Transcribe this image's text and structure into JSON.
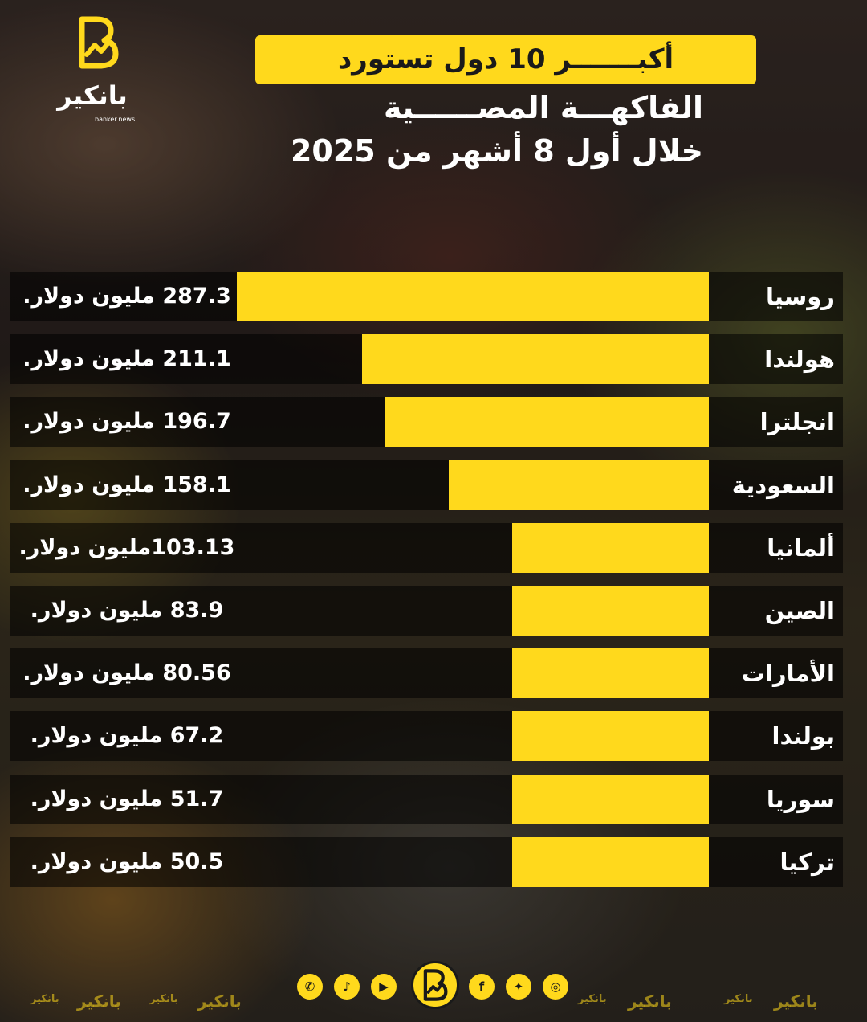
{
  "brand": {
    "name": "بانكير",
    "domain": "banker.news",
    "accent": "#ffd91c"
  },
  "title": {
    "line1": "أكبـــــــر 10 دول تستورد",
    "line2": "الفاكهـــة المصــــــية",
    "line3": "خلال أول 8 أشهر من 2025"
  },
  "chart_data": {
    "type": "bar",
    "orientation": "horizontal",
    "unit": "مليون دولار",
    "categories": [
      "روسيا",
      "هولندا",
      "انجلترا",
      "السعودية",
      "ألمانيا",
      "الصين",
      "الأمارات",
      "بولندا",
      "سوريا",
      "تركيا"
    ],
    "values": [
      287.3,
      211.1,
      196.7,
      158.1,
      103.13,
      83.9,
      80.56,
      67.2,
      51.7,
      50.5
    ],
    "labels": [
      "287.3 مليون دولار.",
      "211.1 مليون دولار.",
      "196.7 مليون دولار.",
      "158.1 مليون دولار.",
      "103.13مليون دولار.",
      "83.9 مليون دولار.",
      "80.56 مليون دولار.",
      "67.2 مليون دولار.",
      "51.7 مليون دولار.",
      "50.5 مليون دولار."
    ]
  },
  "footer": {
    "social_icons": [
      "whatsapp-icon",
      "tiktok-icon",
      "youtube-icon",
      "banker-logo-icon",
      "facebook-icon",
      "twitter-icon",
      "instagram-icon"
    ],
    "watermark": "بانكير"
  }
}
